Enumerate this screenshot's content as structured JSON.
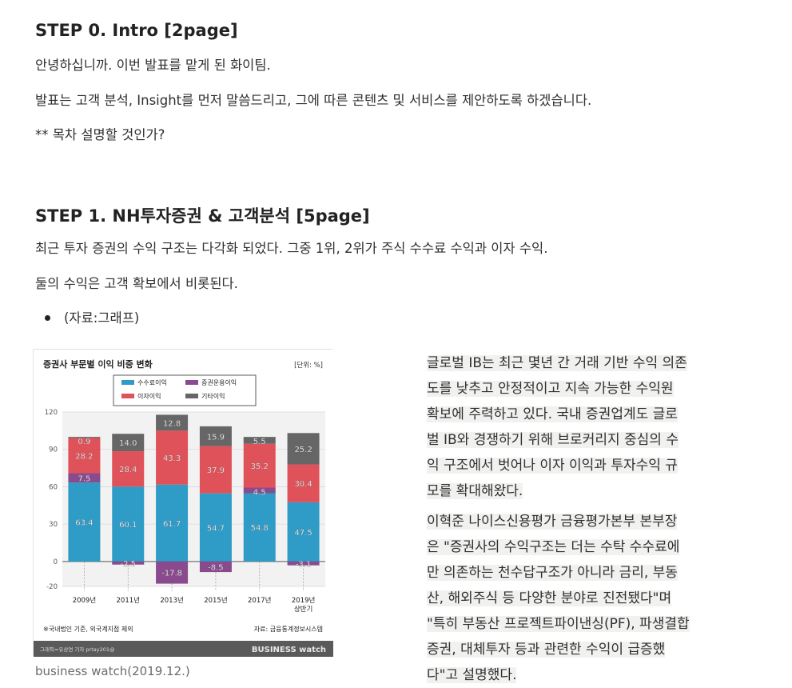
{
  "step0": {
    "heading": "STEP 0. Intro [2page]",
    "lines": [
      "안녕하십니까. 이번 발표를 맡게 된 화이팀.",
      "발표는 고객 분석, Insight를 먼저 말씀드리고, 그에 따른 콘텐츠 및 서비스를 제안하도록 하겠습니다.",
      "** 목차 설명할 것인가?"
    ]
  },
  "step1": {
    "heading": "STEP 1. NH투자증권 & 고객분석 [5page]",
    "lines": [
      "최근 투자 증권의 수익 구조는 다각화 되었다. 그중 1위, 2위가 주식 수수료 수익과 이자 수익.",
      "둘의 수익은 고객 확보에서 비롯된다."
    ],
    "bullet": "(자료:그래프)"
  },
  "caption": "business watch(2019.12.)",
  "quote1": [
    "글로벌 IB는 최근 몇년 간 거래 기반 수익 의존",
    "도를 낮추고 안정적이고 지속 가능한 수익원",
    "확보에 주력하고 있다. 국내 증권업계도 글로",
    "벌 IB와 경쟁하기 위해 브로커리지 중심의 수",
    "익 구조에서 벗어나 이자 이익과 투자수익 규",
    "모를 확대해왔다."
  ],
  "quote2": [
    "이혁준 나이스신용평가 금융평가본부 본부장",
    "은 \"증권사의 수익구조는 더는 수탁 수수료에",
    "만 의존하는 천수답구조가 아니라 금리, 부동",
    "산, 해외주식 등 다양한 분야로 진전됐다\"며",
    "\"특히 부동산 프로젝트파이낸싱(PF), 파생결합",
    "증권, 대체투자 등과 관련한 수익이 급증했",
    "다\"고 설명했다."
  ],
  "chart_data": {
    "type": "bar",
    "stacked": true,
    "title": "증권사 부문별 이익 비중 변화",
    "unit": "[단위: %]",
    "categories": [
      "2009년",
      "2011년",
      "2013년",
      "2015년",
      "2017년",
      "2019년 상반기"
    ],
    "series": [
      {
        "name": "수수료이익",
        "color": "#2f9bc7",
        "values": [
          63.4,
          60.1,
          61.7,
          54.7,
          54.8,
          47.5
        ]
      },
      {
        "name": "증권운용이익",
        "color": "#8a4b8e",
        "values": [
          7.5,
          -2.5,
          -17.8,
          -8.5,
          4.5,
          -3.1
        ]
      },
      {
        "name": "이자이익",
        "color": "#e0525a",
        "values": [
          28.2,
          28.4,
          43.3,
          37.9,
          35.2,
          30.4
        ]
      },
      {
        "name": "기타이익",
        "color": "#666666",
        "values": [
          0.9,
          14.0,
          12.8,
          15.9,
          5.5,
          25.2
        ]
      }
    ],
    "value_labels": [
      [
        "63.4",
        "7.5",
        "28.2",
        "0.9"
      ],
      [
        "60.1",
        "-2.5",
        "28.4",
        "14.0"
      ],
      [
        "61.7",
        "-17.8",
        "43.3",
        "12.8"
      ],
      [
        "54.7",
        "-8.5",
        "37.9",
        "15.9"
      ],
      [
        "54.8",
        "4.5",
        "35.2",
        "5.5"
      ],
      [
        "47.5",
        "-3.1",
        "30.4",
        "25.2"
      ]
    ],
    "yticks": [
      120,
      90,
      60,
      30,
      0,
      -20
    ],
    "ylim": [
      -20,
      120
    ],
    "grid": true,
    "footnote": "※국내법인 기준, 외국계지점 제외",
    "source": "자료: 금융통계정보시스템",
    "credit": "그래픽=유상연 기자 prtay201@",
    "brand": "BUSINESS watch"
  }
}
